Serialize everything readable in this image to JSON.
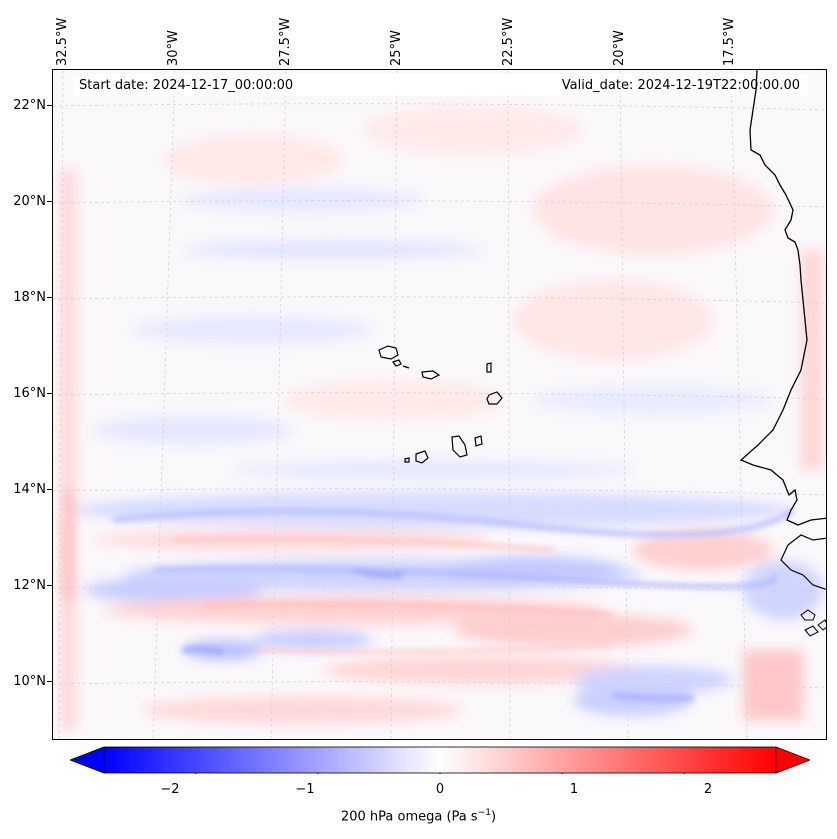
{
  "header": {
    "start_date": "Start date: 2024-12-17_00:00:00",
    "valid_date": "Valid_date: 2024-12-19T22:00:00.00"
  },
  "map": {
    "variable": "200 hPa omega",
    "lon_labels": [
      "32.5°W",
      "30°W",
      "27.5°W",
      "25°W",
      "22.5°W",
      "20°W",
      "17.5°W"
    ],
    "lat_labels": [
      "22°N",
      "20°N",
      "18°N",
      "16°N",
      "14°N",
      "12°N",
      "10°N"
    ],
    "colors": {
      "coast": "#000000",
      "grid": "#c9c9c9",
      "positive": "#ff0000",
      "negative": "#0000ff",
      "neutral": "#ffffff"
    }
  },
  "colorbar": {
    "label_main": "200 hPa omega (Pa s",
    "label_sup": "−1",
    "label_end": ")",
    "ticks": [
      "−2",
      "−1",
      "0",
      "1",
      "2"
    ],
    "tick_values": [
      -2,
      -1,
      0,
      1,
      2
    ],
    "range": [
      -2.75,
      2.75
    ],
    "extend": "both"
  }
}
